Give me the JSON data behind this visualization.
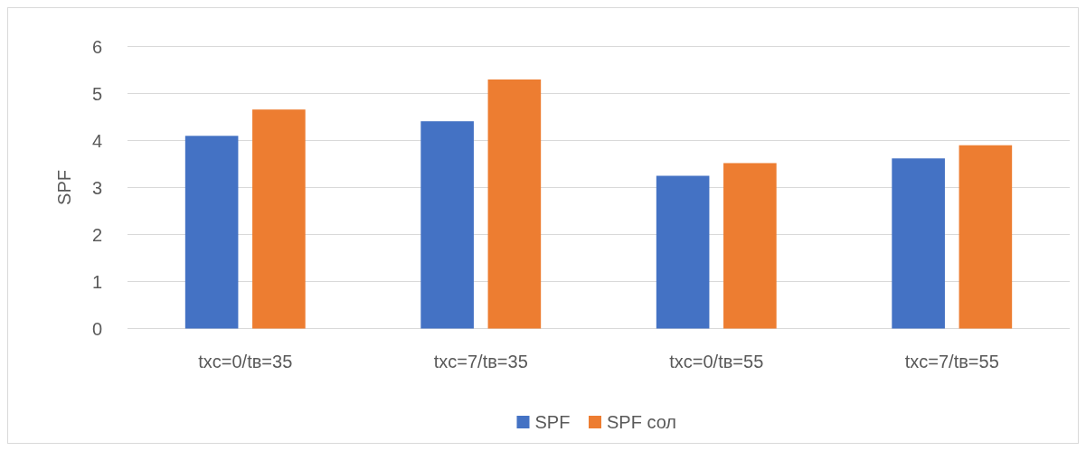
{
  "chart_data": {
    "type": "bar",
    "ylabel": "SPF",
    "categories": [
      "txc=0/tв=35",
      "txc=7/tв=35",
      "txc=0/tв=55",
      "txc=7/tв=55"
    ],
    "series": [
      {
        "name": "SPF",
        "color": "#4472c4",
        "values": [
          4.1,
          4.41,
          3.25,
          3.62
        ]
      },
      {
        "name": "SPF сол",
        "color": "#ed7d31",
        "values": [
          4.66,
          5.3,
          3.52,
          3.9
        ]
      }
    ],
    "ylim": [
      0,
      6
    ],
    "yticks": [
      0,
      1,
      2,
      3,
      4,
      5,
      6
    ],
    "grid": "y",
    "legend": "bottom"
  }
}
